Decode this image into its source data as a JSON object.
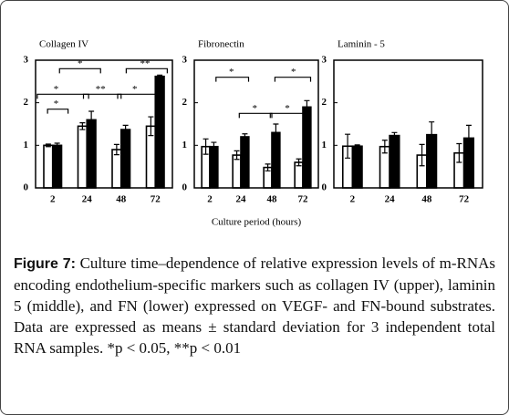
{
  "chart_data": [
    {
      "type": "bar",
      "title": "Collagen IV",
      "categories": [
        "2",
        "24",
        "48",
        "72"
      ],
      "series": [
        {
          "color": "#ffffff",
          "values": [
            1.0,
            1.45,
            0.9,
            1.45
          ],
          "errors": [
            0.03,
            0.08,
            0.12,
            0.22
          ]
        },
        {
          "color": "#000000",
          "values": [
            1.0,
            1.6,
            1.37,
            2.62
          ],
          "errors": [
            0.05,
            0.2,
            0.1,
            0.03
          ]
        }
      ],
      "ylim": [
        0,
        3
      ],
      "yticks": [
        0,
        1,
        2,
        3
      ],
      "annotations": [
        "*",
        "**",
        "*",
        "**",
        "*",
        "*"
      ]
    },
    {
      "type": "bar",
      "title": "Fibronectin",
      "categories": [
        "2",
        "24",
        "48",
        "72"
      ],
      "series": [
        {
          "color": "#ffffff",
          "values": [
            0.97,
            0.77,
            0.48,
            0.6
          ],
          "errors": [
            0.18,
            0.1,
            0.08,
            0.08
          ]
        },
        {
          "color": "#000000",
          "values": [
            0.97,
            1.2,
            1.3,
            1.9
          ],
          "errors": [
            0.1,
            0.07,
            0.2,
            0.15
          ]
        }
      ],
      "ylim": [
        0,
        3
      ],
      "yticks": [
        0,
        1,
        2,
        3
      ],
      "annotations": [
        "*",
        "*",
        "*",
        "*"
      ]
    },
    {
      "type": "bar",
      "title": "Laminin - 5",
      "categories": [
        "2",
        "24",
        "48",
        "72"
      ],
      "series": [
        {
          "color": "#ffffff",
          "values": [
            0.98,
            0.97,
            0.77,
            0.82
          ],
          "errors": [
            0.28,
            0.15,
            0.25,
            0.22
          ]
        },
        {
          "color": "#000000",
          "values": [
            0.98,
            1.23,
            1.25,
            1.17
          ],
          "errors": [
            0.03,
            0.07,
            0.3,
            0.3
          ]
        }
      ],
      "ylim": [
        0,
        3
      ],
      "yticks": [
        0,
        1,
        2,
        3
      ],
      "annotations": []
    }
  ],
  "xlabel": "Culture period (hours)",
  "caption": {
    "label": "Figure 7:",
    "text": "Culture time–dependence of relative expression levels of m-RNAs encoding endothelium-specific markers such as collagen IV (upper), laminin 5 (middle), and FN (lower) expressed on VEGF- and FN-bound substrates. Data are expressed as means ± standard deviation for 3 independent total RNA samples. *p < 0.05, **p < 0.01"
  }
}
